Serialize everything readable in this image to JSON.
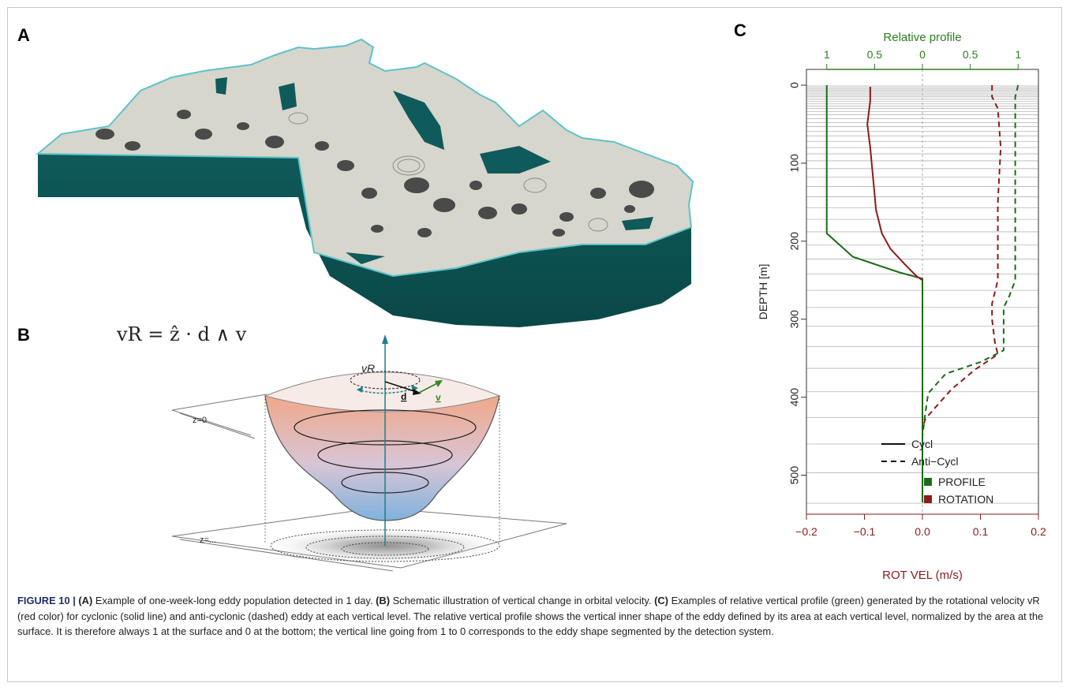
{
  "panels": {
    "a": {
      "letter": "A"
    },
    "b": {
      "letter": "B",
      "equation": "vR = ẑ · d ∧ v",
      "vr_label": "vR",
      "d_label": "d",
      "v_label": "v",
      "z0_label": "z=0",
      "zn_label": "z=..."
    },
    "c": {
      "letter": "C"
    }
  },
  "chart_data": {
    "type": "line",
    "title": "",
    "top_axis": {
      "label": "Relative profile",
      "ticks": [
        "1",
        "0.5",
        "0",
        "0.5",
        "1"
      ],
      "color": "#2e7d1f"
    },
    "xlabel": "ROT VEL (m/s)",
    "xlim": [
      -0.2,
      0.2
    ],
    "x_ticks": [
      "−0.2",
      "−0.1",
      "0.0",
      "0.1",
      "0.2"
    ],
    "ylabel": "DEPTH [m]",
    "ylim": [
      0,
      550
    ],
    "y_ticks": [
      "0",
      "100",
      "200",
      "300",
      "400",
      "500"
    ],
    "y_inverted": true,
    "grid": "horizontal lines at model vertical levels",
    "level_depths": [
      1,
      3,
      5,
      7,
      9,
      11,
      13,
      15,
      18,
      21,
      24,
      27,
      30,
      34,
      38,
      43,
      48,
      53,
      59,
      65,
      72,
      80,
      88,
      97,
      107,
      118,
      130,
      143,
      157,
      172,
      188,
      205,
      223,
      242,
      263,
      285,
      309,
      335,
      363,
      393,
      426,
      460,
      497,
      536
    ],
    "legend": {
      "position": "bottom-right",
      "line_styles": [
        {
          "label": "Cycl",
          "style": "solid"
        },
        {
          "label": "Anti−Cycl",
          "style": "dashed"
        }
      ],
      "colors": [
        {
          "label": "PROFILE",
          "color": "#1b6b17"
        },
        {
          "label": "ROTATION",
          "color": "#8b1a1a"
        }
      ]
    },
    "series": [
      {
        "name": "PROFILE",
        "style": "solid",
        "color": "#1b6b17",
        "points": [
          [
            -0.165,
            0
          ],
          [
            -0.165,
            20
          ],
          [
            -0.165,
            100
          ],
          [
            -0.165,
            190
          ],
          [
            -0.12,
            220
          ],
          [
            -0.04,
            240
          ],
          [
            0,
            248
          ],
          [
            0,
            300
          ],
          [
            0,
            400
          ],
          [
            0,
            500
          ],
          [
            0,
            535
          ]
        ]
      },
      {
        "name": "ROTATION",
        "style": "solid",
        "color": "#8b1a1a",
        "points": [
          [
            -0.09,
            2
          ],
          [
            -0.09,
            20
          ],
          [
            -0.095,
            50
          ],
          [
            -0.09,
            80
          ],
          [
            -0.085,
            120
          ],
          [
            -0.08,
            160
          ],
          [
            -0.07,
            190
          ],
          [
            -0.055,
            210
          ],
          [
            -0.03,
            230
          ],
          [
            -0.01,
            245
          ],
          [
            0,
            250
          ]
        ]
      },
      {
        "name": "PROFILE",
        "style": "dashed",
        "color": "#1b6b17",
        "points": [
          [
            0.165,
            0
          ],
          [
            0.16,
            15
          ],
          [
            0.16,
            100
          ],
          [
            0.16,
            250
          ],
          [
            0.15,
            270
          ],
          [
            0.14,
            285
          ],
          [
            0.14,
            340
          ],
          [
            0.1,
            355
          ],
          [
            0.04,
            370
          ],
          [
            0.01,
            395
          ],
          [
            0.005,
            420
          ],
          [
            0,
            450
          ],
          [
            0,
            535
          ]
        ]
      },
      {
        "name": "ROTATION",
        "style": "dashed",
        "color": "#8b1a1a",
        "points": [
          [
            0.12,
            0
          ],
          [
            0.12,
            15
          ],
          [
            0.13,
            30
          ],
          [
            0.135,
            80
          ],
          [
            0.13,
            150
          ],
          [
            0.13,
            250
          ],
          [
            0.12,
            280
          ],
          [
            0.12,
            300
          ],
          [
            0.125,
            330
          ],
          [
            0.13,
            345
          ],
          [
            0.09,
            365
          ],
          [
            0.05,
            390
          ],
          [
            0.02,
            415
          ],
          [
            0.005,
            428
          ],
          [
            0,
            440
          ]
        ]
      }
    ]
  },
  "caption": {
    "label": "FIGURE 10 | ",
    "a_ref": "(A)",
    "a_text": " Example of one-week-long eddy population detected in 1 day. ",
    "b_ref": "(B)",
    "b_text": " Schematic illustration of vertical change in orbital velocity. ",
    "c_ref": "(C)",
    "c_text": " Examples of relative vertical profile (green) generated by the rotational velocity vR (red color) for cyclonic (solid line) and anti-cyclonic (dashed) eddy at each vertical level. The relative vertical profile shows the vertical inner shape of the eddy defined by its area at each vertical level, normalized by the area at the surface. It is therefore always 1 at the surface and 0 at the bottom; the vertical line going from 1 to 0 corresponds to the eddy shape segmented by the detection system."
  }
}
